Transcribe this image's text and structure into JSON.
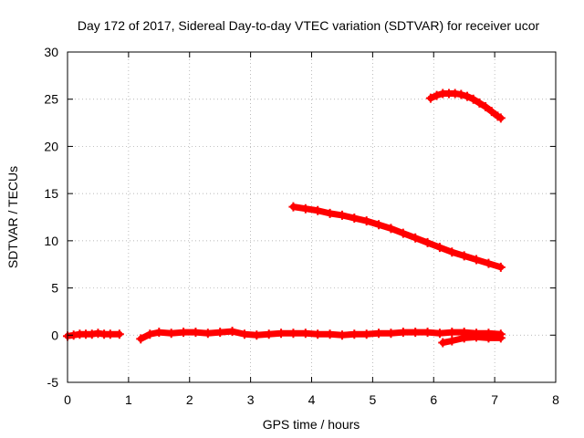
{
  "chart_data": {
    "type": "scatter",
    "title": "Day 172 of 2017, Sidereal Day-to-day VTEC variation (SDTVAR) for receiver ucor",
    "xlabel": "GPS time / hours",
    "ylabel": "SDTVAR / TECUs",
    "xlim": [
      0,
      8
    ],
    "ylim": [
      -5,
      30
    ],
    "x_ticks": [
      0,
      1,
      2,
      3,
      4,
      5,
      6,
      7,
      8
    ],
    "y_ticks": [
      -5,
      0,
      5,
      10,
      15,
      20,
      25,
      30
    ],
    "grid": true,
    "legend": "none",
    "series_color": "#ff0000",
    "series": [
      {
        "x": [
          0.0,
          0.1,
          0.2,
          0.3,
          0.4,
          0.5,
          0.6,
          0.7,
          0.85
        ],
        "y": [
          -0.1,
          0.0,
          0.1,
          0.1,
          0.1,
          0.2,
          0.1,
          0.1,
          0.1
        ]
      },
      {
        "x": [
          1.2,
          1.35,
          1.5,
          1.7,
          1.9,
          2.1,
          2.3,
          2.5,
          2.7,
          2.9,
          3.1,
          3.3,
          3.5,
          3.7,
          3.9,
          4.1,
          4.3,
          4.5,
          4.7,
          4.9,
          5.1,
          5.3,
          5.5,
          5.7,
          5.9,
          6.1,
          6.3,
          6.5,
          6.7,
          6.9,
          7.1
        ],
        "y": [
          -0.4,
          0.1,
          0.3,
          0.2,
          0.3,
          0.3,
          0.2,
          0.3,
          0.4,
          0.1,
          0.0,
          0.1,
          0.2,
          0.2,
          0.2,
          0.1,
          0.1,
          0.0,
          0.1,
          0.1,
          0.2,
          0.2,
          0.3,
          0.3,
          0.3,
          0.2,
          0.3,
          0.3,
          0.2,
          0.2,
          0.1
        ]
      },
      {
        "x": [
          6.15,
          6.3,
          6.5,
          6.7,
          6.9,
          7.1
        ],
        "y": [
          -0.8,
          -0.6,
          -0.3,
          -0.2,
          -0.3,
          -0.3
        ]
      },
      {
        "x": [
          3.7,
          3.9,
          4.1,
          4.3,
          4.5,
          4.7,
          4.9,
          5.1,
          5.3,
          5.5,
          5.7,
          5.9,
          6.1,
          6.3,
          6.5,
          6.7,
          6.9,
          7.1
        ],
        "y": [
          13.6,
          13.4,
          13.2,
          12.9,
          12.7,
          12.4,
          12.1,
          11.7,
          11.3,
          10.8,
          10.3,
          9.8,
          9.3,
          8.8,
          8.4,
          8.0,
          7.6,
          7.2
        ]
      },
      {
        "x": [
          5.95,
          6.05,
          6.15,
          6.25,
          6.35,
          6.45,
          6.55,
          6.65,
          6.75,
          6.85,
          6.95,
          7.05,
          7.1
        ],
        "y": [
          25.1,
          25.4,
          25.6,
          25.6,
          25.6,
          25.5,
          25.3,
          25.0,
          24.6,
          24.2,
          23.7,
          23.2,
          23.0
        ]
      }
    ]
  }
}
